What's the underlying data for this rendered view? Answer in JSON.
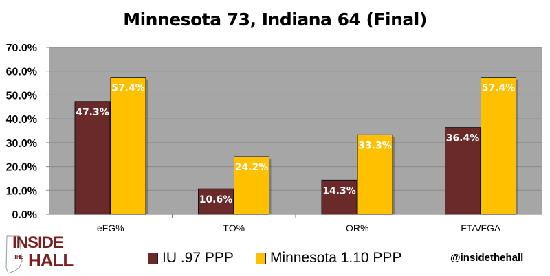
{
  "chart_data": {
    "type": "bar",
    "title": "Minnesota 73, Indiana 64 (Final)",
    "categories": [
      "eFG%",
      "TO%",
      "OR%",
      "FTA/FGA"
    ],
    "series": [
      {
        "name": "IU .97 PPP",
        "color": "#6b2a2a",
        "values": [
          47.3,
          10.6,
          14.3,
          36.4
        ],
        "labels": [
          "47.3%",
          "10.6%",
          "14.3%",
          "36.4%"
        ]
      },
      {
        "name": "Minnesota 1.10 PPP",
        "color": "#ffc000",
        "values": [
          57.4,
          24.2,
          33.3,
          57.4
        ],
        "labels": [
          "57.4%",
          "24.2%",
          "33.3%",
          "57.4%"
        ]
      }
    ],
    "ylim": [
      0,
      70
    ],
    "yticks": [
      "0.0%",
      "10.0%",
      "20.0%",
      "30.0%",
      "40.0%",
      "50.0%",
      "60.0%",
      "70.0%"
    ],
    "grid": true,
    "legend_position": "bottom",
    "xlabel": "",
    "ylabel": ""
  },
  "logo": {
    "line1": "INSIDE",
    "small": "THE",
    "line2": "HALL"
  },
  "handle": "@insidethehall"
}
